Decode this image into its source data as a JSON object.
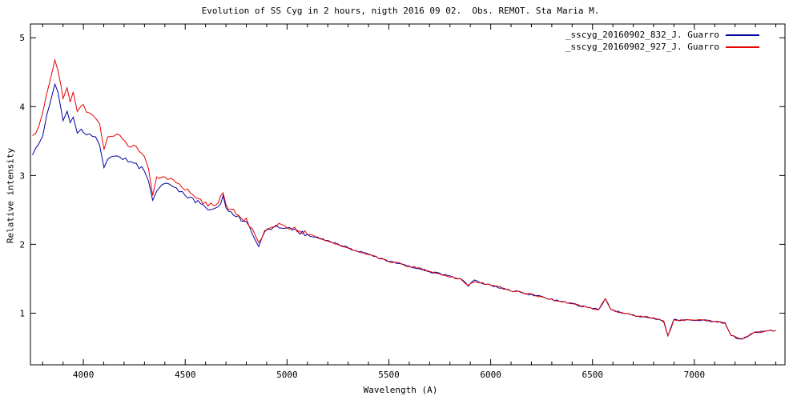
{
  "title": "Evolution of SS Cyg in 2 hours, nigth 2016 09 02.  Obs. REMOT. Sta Maria M.",
  "xlabel": "Wavelength (A)",
  "ylabel": "Relative intensity",
  "legend": [
    {
      "label": "_sscyg_20160902_832_J. Guarro",
      "color": "#0000a0"
    },
    {
      "label": "_sscyg_20160902_927_J. Guarro",
      "color": "#e60000"
    }
  ],
  "chart_data": {
    "type": "line",
    "title": "Evolution of SS Cyg in 2 hours, nigth 2016 09 02.  Obs. REMOT. Sta Maria M.",
    "xlabel": "Wavelength (A)",
    "ylabel": "Relative intensity",
    "xlim": [
      3740,
      7445
    ],
    "ylim": [
      0.25,
      5.2
    ],
    "xticks": [
      4000,
      4500,
      5000,
      5500,
      6000,
      6500,
      7000
    ],
    "yticks": [
      1,
      2,
      3,
      4,
      5
    ],
    "grid": false,
    "legend_position": "top-right",
    "x": [
      3750,
      3780,
      3800,
      3820,
      3840,
      3860,
      3875,
      3890,
      3900,
      3920,
      3935,
      3950,
      3970,
      3990,
      4000,
      4030,
      4060,
      4080,
      4101,
      4120,
      4150,
      4180,
      4220,
      4260,
      4300,
      4320,
      4340,
      4360,
      4400,
      4430,
      4470,
      4500,
      4550,
      4600,
      4650,
      4686,
      4700,
      4750,
      4800,
      4830,
      4861,
      4890,
      4920,
      4960,
      5000,
      5050,
      5100,
      5150,
      5200,
      5250,
      5300,
      5350,
      5400,
      5450,
      5500,
      5550,
      5600,
      5650,
      5700,
      5750,
      5800,
      5850,
      5890,
      5920,
      5960,
      6000,
      6050,
      6100,
      6150,
      6200,
      6250,
      6300,
      6350,
      6400,
      6450,
      6500,
      6530,
      6563,
      6590,
      6650,
      6700,
      6750,
      6800,
      6850,
      6870,
      6900,
      6950,
      7000,
      7050,
      7100,
      7150,
      7180,
      7220,
      7250,
      7300,
      7350,
      7400
    ],
    "series": [
      {
        "name": "_sscyg_20160902_832_J. Guarro",
        "color": "#0000a0",
        "values": [
          3.3,
          3.42,
          3.6,
          3.88,
          4.1,
          4.35,
          4.2,
          3.95,
          3.82,
          3.95,
          3.78,
          3.85,
          3.6,
          3.7,
          3.65,
          3.58,
          3.55,
          3.45,
          3.08,
          3.25,
          3.3,
          3.27,
          3.2,
          3.15,
          3.08,
          2.9,
          2.62,
          2.8,
          2.88,
          2.85,
          2.76,
          2.72,
          2.63,
          2.54,
          2.5,
          2.68,
          2.5,
          2.41,
          2.31,
          2.16,
          1.98,
          2.17,
          2.22,
          2.27,
          2.23,
          2.18,
          2.14,
          2.1,
          2.05,
          2.0,
          1.95,
          1.9,
          1.85,
          1.8,
          1.75,
          1.72,
          1.68,
          1.65,
          1.6,
          1.57,
          1.53,
          1.5,
          1.4,
          1.47,
          1.44,
          1.4,
          1.37,
          1.33,
          1.3,
          1.27,
          1.24,
          1.2,
          1.17,
          1.14,
          1.1,
          1.07,
          1.05,
          1.22,
          1.05,
          1.0,
          0.97,
          0.95,
          0.93,
          0.88,
          0.67,
          0.9,
          0.9,
          0.9,
          0.9,
          0.88,
          0.85,
          0.68,
          0.62,
          0.65,
          0.72,
          0.73,
          0.75
        ]
      },
      {
        "name": "_sscyg_20160902_927_J. Guarro",
        "color": "#e60000",
        "values": [
          3.55,
          3.7,
          3.9,
          4.2,
          4.45,
          4.7,
          4.55,
          4.3,
          4.15,
          4.3,
          4.1,
          4.2,
          3.95,
          4.05,
          4.0,
          3.9,
          3.85,
          3.75,
          3.35,
          3.55,
          3.6,
          3.55,
          3.45,
          3.4,
          3.3,
          3.1,
          2.7,
          2.95,
          3.0,
          2.95,
          2.85,
          2.8,
          2.7,
          2.6,
          2.55,
          2.75,
          2.55,
          2.45,
          2.35,
          2.2,
          2.0,
          2.2,
          2.25,
          2.3,
          2.25,
          2.2,
          2.15,
          2.1,
          2.05,
          2.0,
          1.95,
          1.9,
          1.85,
          1.8,
          1.75,
          1.72,
          1.68,
          1.65,
          1.6,
          1.57,
          1.53,
          1.5,
          1.4,
          1.47,
          1.44,
          1.4,
          1.37,
          1.33,
          1.3,
          1.27,
          1.24,
          1.2,
          1.17,
          1.14,
          1.1,
          1.07,
          1.05,
          1.22,
          1.05,
          1.0,
          0.97,
          0.95,
          0.93,
          0.88,
          0.67,
          0.9,
          0.9,
          0.9,
          0.9,
          0.88,
          0.85,
          0.68,
          0.62,
          0.65,
          0.72,
          0.73,
          0.75
        ]
      }
    ]
  }
}
